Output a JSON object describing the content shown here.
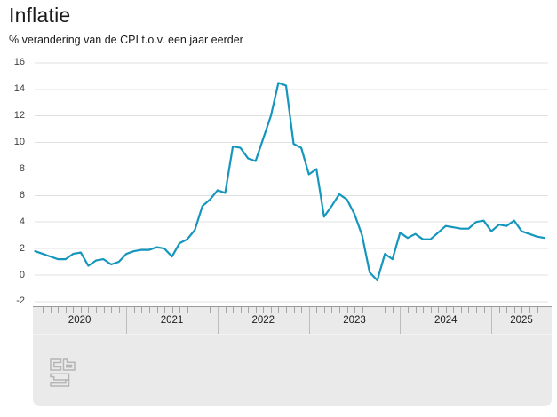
{
  "header": {
    "title": "Inflatie",
    "subtitle": "% verandering van de CPI t.o.v. een jaar eerder"
  },
  "chart_data": {
    "type": "line",
    "title": "Inflatie",
    "subtitle": "% verandering van de CPI t.o.v. een jaar eerder",
    "unit": "%",
    "line_color": "#1496bd",
    "grid": true,
    "legend": "none",
    "ylim": [
      -2,
      16
    ],
    "yticks": [
      16,
      14,
      12,
      10,
      8,
      6,
      4,
      2,
      0,
      -2
    ],
    "x_years": [
      "2020",
      "2021",
      "2022",
      "2023",
      "2024",
      "2025"
    ],
    "x_frequency": "monthly",
    "x_monthly_start": "2020-01",
    "x_monthly_end": "2025-08",
    "values": [
      1.8,
      1.6,
      1.4,
      1.2,
      1.2,
      1.6,
      1.7,
      0.7,
      1.1,
      1.2,
      0.8,
      1.0,
      1.6,
      1.8,
      1.9,
      1.9,
      2.1,
      2.0,
      1.4,
      2.4,
      2.7,
      3.4,
      5.2,
      5.7,
      6.4,
      6.2,
      9.7,
      9.6,
      8.8,
      8.6,
      10.3,
      12.0,
      14.5,
      14.3,
      9.9,
      9.6,
      7.6,
      8.0,
      4.4,
      5.2,
      6.1,
      5.7,
      4.6,
      3.0,
      0.2,
      -0.4,
      1.6,
      1.2,
      3.2,
      2.8,
      3.1,
      2.7,
      2.7,
      3.2,
      3.7,
      3.6,
      3.5,
      3.5,
      4.0,
      4.1,
      3.3,
      3.8,
      3.7,
      4.1,
      3.3,
      3.1,
      2.9,
      2.8
    ]
  },
  "footer": {
    "logo": "cbs-logo"
  }
}
